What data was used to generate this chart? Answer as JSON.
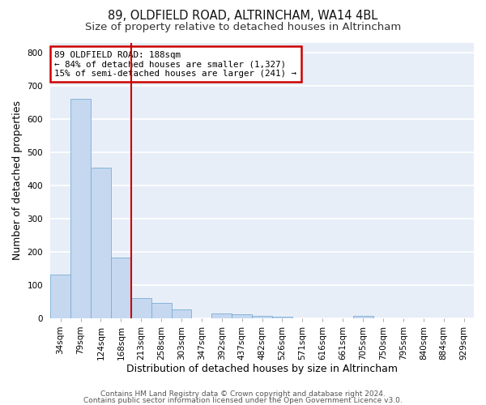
{
  "title1": "89, OLDFIELD ROAD, ALTRINCHAM, WA14 4BL",
  "title2": "Size of property relative to detached houses in Altrincham",
  "xlabel": "Distribution of detached houses by size in Altrincham",
  "ylabel": "Number of detached properties",
  "footer1": "Contains HM Land Registry data © Crown copyright and database right 2024.",
  "footer2": "Contains public sector information licensed under the Open Government Licence v3.0.",
  "categories": [
    "34sqm",
    "79sqm",
    "124sqm",
    "168sqm",
    "213sqm",
    "258sqm",
    "303sqm",
    "347sqm",
    "392sqm",
    "437sqm",
    "482sqm",
    "526sqm",
    "571sqm",
    "616sqm",
    "661sqm",
    "705sqm",
    "750sqm",
    "795sqm",
    "840sqm",
    "884sqm",
    "929sqm"
  ],
  "values": [
    130,
    660,
    452,
    183,
    60,
    47,
    27,
    0,
    13,
    12,
    7,
    4,
    0,
    0,
    0,
    7,
    0,
    0,
    0,
    0,
    0
  ],
  "bar_color": "#c5d8f0",
  "bar_edge_color": "#7aadd4",
  "red_line_x": 3.5,
  "annotation_title": "89 OLDFIELD ROAD: 188sqm",
  "annotation_line1": "← 84% of detached houses are smaller (1,327)",
  "annotation_line2": "15% of semi-detached houses are larger (241) →",
  "annotation_box_color": "#ffffff",
  "annotation_box_edge": "#cc0000",
  "red_line_color": "#cc0000",
  "ylim": [
    0,
    830
  ],
  "yticks": [
    0,
    100,
    200,
    300,
    400,
    500,
    600,
    700,
    800
  ],
  "bg_color": "#e8eef8",
  "fig_bg_color": "#ffffff",
  "grid_color": "#ffffff",
  "title_fontsize": 10.5,
  "subtitle_fontsize": 9.5,
  "axis_label_fontsize": 9,
  "tick_fontsize": 7.5,
  "footer_fontsize": 6.5
}
